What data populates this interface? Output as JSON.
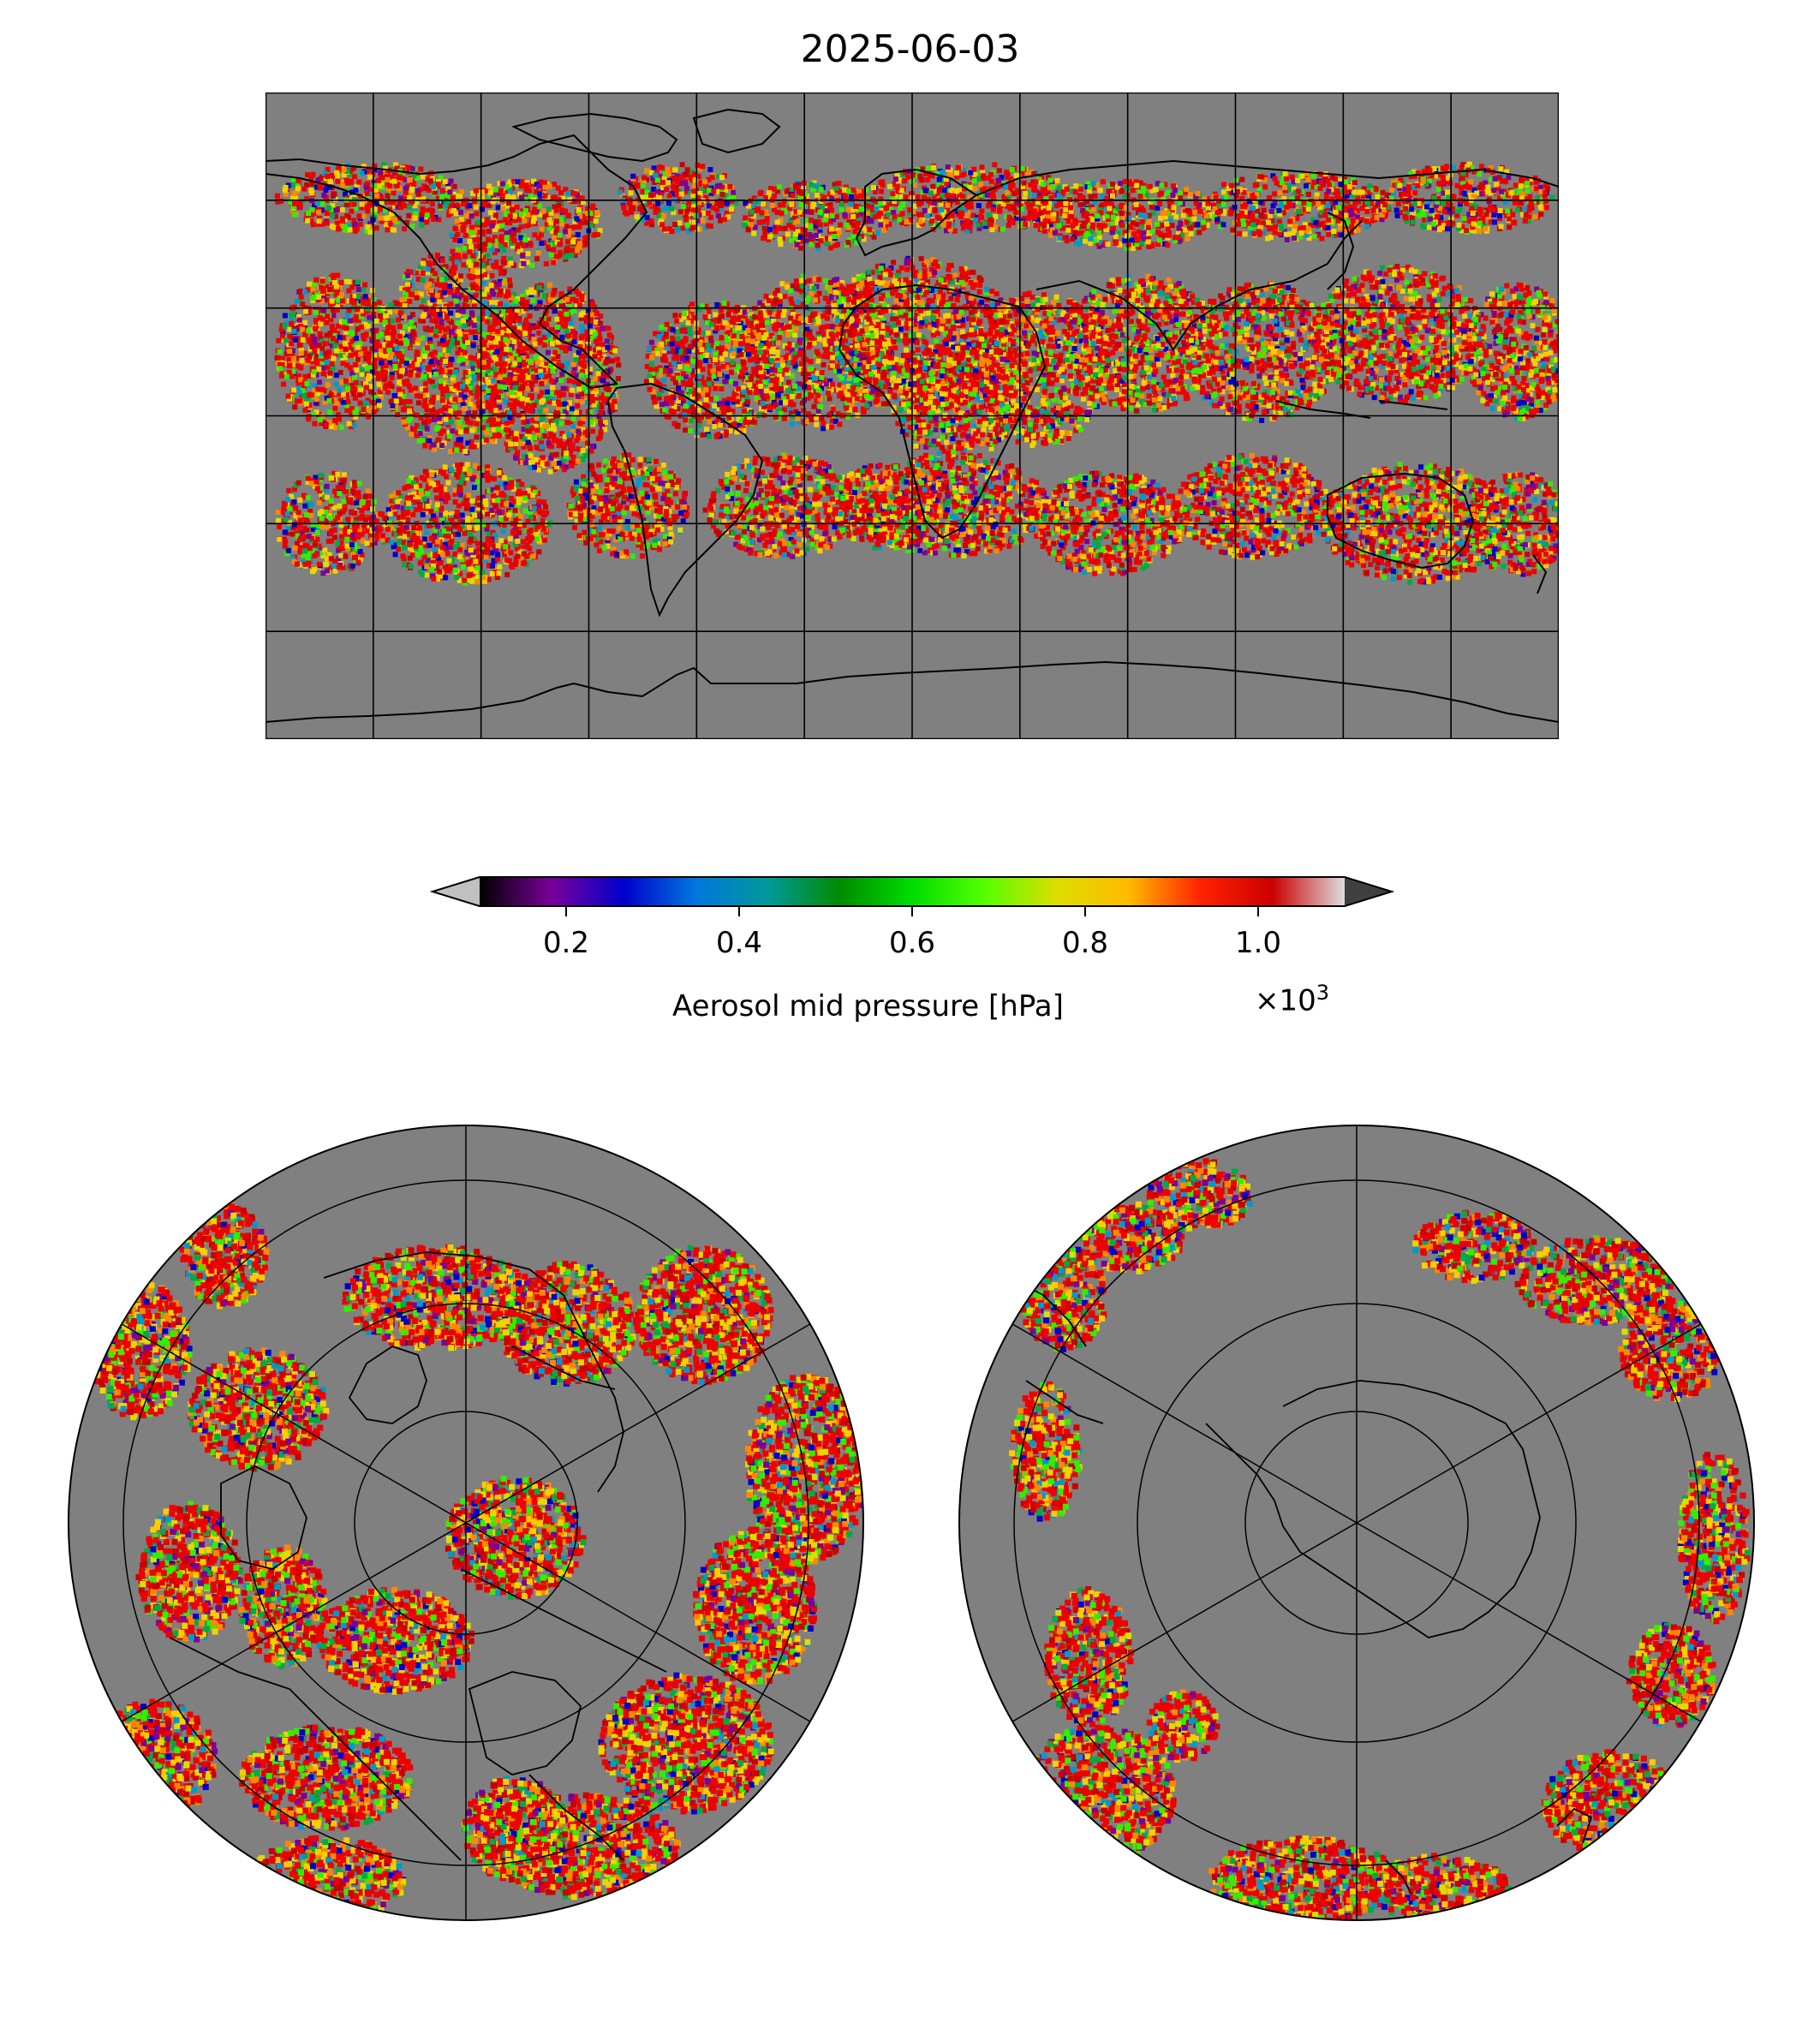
{
  "title": "2025-06-03",
  "colorbar": {
    "label": "Aerosol mid pressure [hPa]",
    "multiplier": "×10",
    "multiplier_exp": "3",
    "ticks": [
      "0.2",
      "0.4",
      "0.6",
      "0.8",
      "1.0"
    ],
    "tick_values": [
      0.2,
      0.4,
      0.6,
      0.8,
      1.0
    ],
    "range": [
      0.1,
      1.1
    ],
    "extend": "both",
    "under_color": "#c0c0c0",
    "over_color": "#404040",
    "colormap_stops": [
      "#000000",
      "#7a0099",
      "#0000cc",
      "#0077dd",
      "#009999",
      "#008c00",
      "#00dd00",
      "#55ff00",
      "#dddd00",
      "#ffbb00",
      "#ff2200",
      "#cc0000",
      "#dddddd"
    ]
  },
  "map": {
    "background_color": "#808080",
    "grid_color": "#000000",
    "projections": [
      "equirectangular",
      "north-polar-stereographic",
      "south-polar-stereographic"
    ]
  }
}
